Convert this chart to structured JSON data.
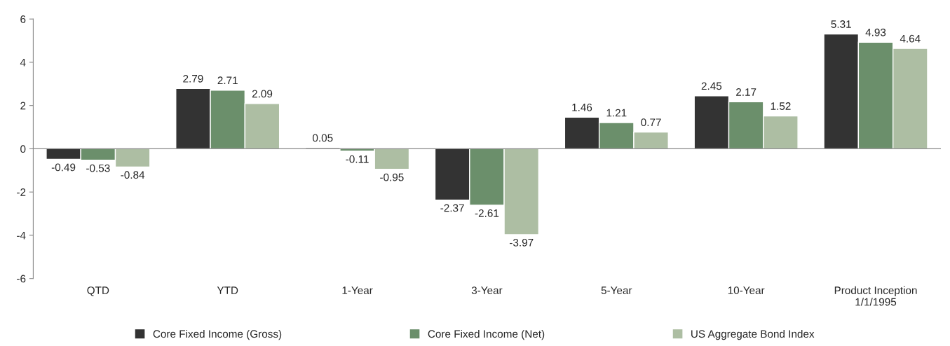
{
  "chart_data": {
    "type": "bar",
    "categories": [
      "QTD",
      "YTD",
      "1-Year",
      "3-Year",
      "5-Year",
      "10-Year",
      "Product Inception\n1/1/1995"
    ],
    "series": [
      {
        "name": "Core Fixed Income (Gross)",
        "color": "#333333",
        "values": [
          -0.49,
          2.79,
          0.05,
          -2.37,
          1.46,
          2.45,
          5.31
        ]
      },
      {
        "name": "Core Fixed Income (Net)",
        "color": "#6b8f6b",
        "values": [
          -0.53,
          2.71,
          -0.11,
          -2.61,
          1.21,
          2.17,
          4.93
        ]
      },
      {
        "name": "US Aggregate Bond Index",
        "color": "#adbea3",
        "values": [
          -0.84,
          2.09,
          -0.95,
          -3.97,
          0.77,
          1.52,
          4.64
        ]
      }
    ],
    "ylim": [
      -6,
      6
    ],
    "yticks": [
      -6,
      -4,
      -2,
      0,
      2,
      4,
      6
    ],
    "data_labels": true,
    "legend": "bottom"
  }
}
